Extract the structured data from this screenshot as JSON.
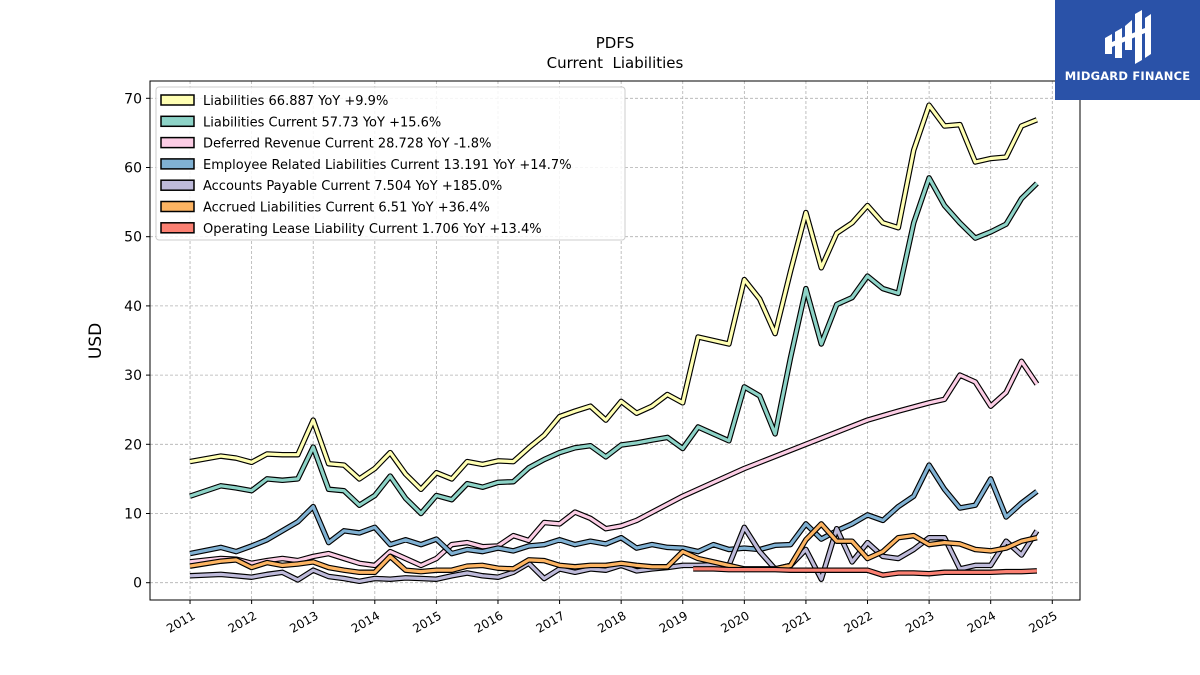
{
  "chart_data": {
    "type": "line",
    "title": "PDFS",
    "subtitle": "Current  Liabilities",
    "xlabel": "",
    "ylabel": "USD",
    "x_ticks": [
      "2011",
      "2012",
      "2013",
      "2014",
      "2015",
      "2016",
      "2017",
      "2018",
      "2019",
      "2020",
      "2021",
      "2022",
      "2023",
      "2024",
      "2025"
    ],
    "y_ticks": [
      0,
      10,
      20,
      30,
      40,
      50,
      60,
      70
    ],
    "xlim": [
      2010.35,
      2025.45
    ],
    "ylim": [
      -2.5,
      72.5
    ],
    "grid": true,
    "legend_position": "top-left",
    "series": [
      {
        "name": "Liabilities",
        "legend_label": "Liabilities  66.887 YoY +9.9%",
        "color": "#ffffb3",
        "x": [
          2011.0,
          2011.5,
          2011.75,
          2012.0,
          2012.25,
          2012.5,
          2012.75,
          2013.0,
          2013.25,
          2013.5,
          2013.75,
          2014.0,
          2014.25,
          2014.5,
          2014.75,
          2015.0,
          2015.25,
          2015.5,
          2015.75,
          2016.0,
          2016.25,
          2016.5,
          2016.75,
          2017.0,
          2017.25,
          2017.5,
          2017.75,
          2018.0,
          2018.25,
          2018.5,
          2018.75,
          2019.0,
          2019.25,
          2019.5,
          2019.75,
          2020.0,
          2020.25,
          2020.5,
          2020.75,
          2021.0,
          2021.25,
          2021.5,
          2021.75,
          2022.0,
          2022.25,
          2022.5,
          2022.75,
          2023.0,
          2023.25,
          2023.5,
          2023.75,
          2024.0,
          2024.25,
          2024.5,
          2024.75
        ],
        "y": [
          17.5,
          18.3,
          18.0,
          17.4,
          18.6,
          18.5,
          18.5,
          23.5,
          17.2,
          17.0,
          15.0,
          16.5,
          18.8,
          15.7,
          13.5,
          15.9,
          15.0,
          17.5,
          17.1,
          17.6,
          17.5,
          19.5,
          21.3,
          24.0,
          24.8,
          25.5,
          23.5,
          26.2,
          24.5,
          25.5,
          27.2,
          26.0,
          35.5,
          35.0,
          34.5,
          43.8,
          41.0,
          36.0,
          45.0,
          53.5,
          45.5,
          50.5,
          52.0,
          54.5,
          52.0,
          51.3,
          62.5,
          69.0,
          66.0,
          66.2,
          60.8,
          61.3,
          61.5,
          66.0,
          66.9
        ]
      },
      {
        "name": "Liabilities Current",
        "legend_label": "Liabilities Current  57.73 YoY +15.6%",
        "color": "#8dd3c7",
        "x": [
          2011.0,
          2011.5,
          2011.75,
          2012.0,
          2012.25,
          2012.5,
          2012.75,
          2013.0,
          2013.25,
          2013.5,
          2013.75,
          2014.0,
          2014.25,
          2014.5,
          2014.75,
          2015.0,
          2015.25,
          2015.5,
          2015.75,
          2016.0,
          2016.25,
          2016.5,
          2016.75,
          2017.0,
          2017.25,
          2017.5,
          2017.75,
          2018.0,
          2018.25,
          2018.5,
          2018.75,
          2019.0,
          2019.25,
          2019.5,
          2019.75,
          2020.0,
          2020.25,
          2020.5,
          2020.75,
          2021.0,
          2021.25,
          2021.5,
          2021.75,
          2022.0,
          2022.25,
          2022.5,
          2022.75,
          2023.0,
          2023.25,
          2023.5,
          2023.75,
          2024.0,
          2024.25,
          2024.5,
          2024.75
        ],
        "y": [
          12.5,
          14.0,
          13.7,
          13.3,
          15.0,
          14.8,
          15.0,
          19.6,
          13.5,
          13.3,
          11.2,
          12.6,
          15.4,
          12.2,
          10.0,
          12.6,
          12.0,
          14.3,
          13.8,
          14.5,
          14.6,
          16.6,
          17.8,
          18.8,
          19.5,
          19.8,
          18.2,
          19.9,
          20.2,
          20.6,
          21.0,
          19.4,
          22.5,
          21.5,
          20.5,
          28.3,
          27.0,
          21.5,
          32.5,
          42.5,
          34.5,
          40.2,
          41.2,
          44.3,
          42.5,
          41.8,
          52.0,
          58.5,
          54.5,
          52.0,
          49.8,
          50.7,
          51.8,
          55.5,
          57.7
        ]
      },
      {
        "name": "Deferred Revenue Current",
        "legend_label": "Deferred Revenue Current  28.728 YoY -1.8%",
        "color": "#fccde5",
        "x": [
          2011.0,
          2011.5,
          2011.75,
          2012.0,
          2012.25,
          2012.5,
          2012.75,
          2013.0,
          2013.25,
          2013.5,
          2013.75,
          2014.0,
          2014.25,
          2014.5,
          2014.75,
          2015.0,
          2015.25,
          2015.5,
          2015.75,
          2016.0,
          2016.25,
          2016.5,
          2016.75,
          2017.0,
          2017.25,
          2017.5,
          2017.75,
          2018.0,
          2018.25,
          2019.0,
          2020.0,
          2021.0,
          2022.0,
          2022.5,
          2023.0,
          2023.25,
          2023.5,
          2023.75,
          2024.0,
          2024.25,
          2024.5,
          2024.75
        ],
        "y": [
          3.0,
          3.5,
          3.4,
          2.8,
          3.2,
          3.5,
          3.2,
          3.8,
          4.2,
          3.5,
          2.8,
          2.5,
          4.5,
          3.5,
          2.5,
          3.5,
          5.5,
          5.8,
          5.2,
          5.3,
          6.8,
          6.1,
          8.7,
          8.5,
          10.2,
          9.3,
          7.8,
          8.2,
          9.0,
          12.5,
          16.5,
          20.0,
          23.5,
          24.8,
          26.0,
          26.5,
          30.0,
          29.0,
          25.5,
          27.5,
          32.0,
          28.7
        ]
      },
      {
        "name": "Employee Related Liabilities Current",
        "legend_label": "Employee Related Liabilities Current  13.191 YoY +14.7%",
        "color": "#80b1d3",
        "x": [
          2011.0,
          2011.5,
          2011.75,
          2012.0,
          2012.25,
          2012.5,
          2012.75,
          2013.0,
          2013.25,
          2013.5,
          2013.75,
          2014.0,
          2014.25,
          2014.5,
          2014.75,
          2015.0,
          2015.25,
          2015.5,
          2015.75,
          2016.0,
          2016.25,
          2016.5,
          2016.75,
          2017.0,
          2017.25,
          2017.5,
          2017.75,
          2018.0,
          2018.25,
          2018.5,
          2018.75,
          2019.0,
          2019.25,
          2019.5,
          2019.75,
          2020.0,
          2020.25,
          2020.5,
          2020.75,
          2021.0,
          2021.25,
          2021.5,
          2021.75,
          2022.0,
          2022.25,
          2022.5,
          2022.75,
          2023.0,
          2023.25,
          2023.5,
          2023.75,
          2024.0,
          2024.25,
          2024.5,
          2024.75
        ],
        "y": [
          4.2,
          5.1,
          4.5,
          5.3,
          6.2,
          7.5,
          8.8,
          11.0,
          5.8,
          7.5,
          7.2,
          8.0,
          5.5,
          6.2,
          5.5,
          6.3,
          4.2,
          4.8,
          4.5,
          5.0,
          4.6,
          5.3,
          5.5,
          6.2,
          5.5,
          6.0,
          5.6,
          6.5,
          5.0,
          5.5,
          5.1,
          5.0,
          4.5,
          5.5,
          4.8,
          5.0,
          4.8,
          5.4,
          5.5,
          8.5,
          6.3,
          7.5,
          8.5,
          9.8,
          9.0,
          11.0,
          12.5,
          17.0,
          13.5,
          10.8,
          11.2,
          15.0,
          9.5,
          11.5,
          13.2
        ]
      },
      {
        "name": "Accounts Payable Current",
        "legend_label": "Accounts Payable Current  7.504 YoY +185.0%",
        "color": "#bebada",
        "x": [
          2011.0,
          2011.5,
          2011.75,
          2012.0,
          2012.25,
          2012.5,
          2012.75,
          2013.0,
          2013.25,
          2013.5,
          2013.75,
          2014.0,
          2014.25,
          2014.5,
          2014.75,
          2015.0,
          2015.25,
          2015.5,
          2015.75,
          2016.0,
          2016.25,
          2016.5,
          2016.75,
          2017.0,
          2017.25,
          2017.5,
          2017.75,
          2018.0,
          2018.25,
          2018.5,
          2018.75,
          2019.0,
          2019.25,
          2019.5,
          2019.75,
          2020.0,
          2020.25,
          2020.5,
          2020.75,
          2021.0,
          2021.25,
          2021.5,
          2021.75,
          2022.0,
          2022.25,
          2022.5,
          2022.75,
          2023.0,
          2023.25,
          2023.5,
          2023.75,
          2024.0,
          2024.25,
          2024.5,
          2024.75
        ],
        "y": [
          1.0,
          1.2,
          1.0,
          0.8,
          1.2,
          1.5,
          0.4,
          1.8,
          0.9,
          0.6,
          0.2,
          0.6,
          0.5,
          0.7,
          0.6,
          0.5,
          1.0,
          1.4,
          1.0,
          0.8,
          1.5,
          2.8,
          0.6,
          2.0,
          1.5,
          2.0,
          1.8,
          2.5,
          1.7,
          2.0,
          2.2,
          2.5,
          2.5,
          2.6,
          2.5,
          8.0,
          4.5,
          2.0,
          2.5,
          4.8,
          0.5,
          7.8,
          3.0,
          5.8,
          3.8,
          3.5,
          4.8,
          6.5,
          6.5,
          2.0,
          2.5,
          2.5,
          6.0,
          4.0,
          7.5
        ]
      },
      {
        "name": "Accrued Liabilities Current",
        "legend_label": "Accrued Liabilities Current  6.51 YoY +36.4%",
        "color": "#fdb462",
        "x": [
          2011.0,
          2011.5,
          2011.75,
          2012.0,
          2012.25,
          2012.5,
          2012.75,
          2013.0,
          2013.25,
          2013.5,
          2013.75,
          2014.0,
          2014.25,
          2014.5,
          2014.75,
          2015.0,
          2015.25,
          2015.5,
          2015.75,
          2016.0,
          2016.25,
          2016.5,
          2016.75,
          2017.0,
          2017.25,
          2017.5,
          2017.75,
          2018.0,
          2018.25,
          2018.5,
          2018.75,
          2019.0,
          2019.25,
          2019.5,
          2019.75,
          2020.0,
          2020.25,
          2020.5,
          2020.75,
          2021.0,
          2021.25,
          2021.5,
          2021.75,
          2022.0,
          2022.25,
          2022.5,
          2022.75,
          2023.0,
          2023.25,
          2023.5,
          2023.75,
          2024.0,
          2024.25,
          2024.5,
          2024.75
        ],
        "y": [
          2.4,
          3.1,
          3.3,
          2.2,
          2.9,
          2.5,
          2.7,
          3.0,
          2.2,
          1.8,
          1.5,
          1.5,
          3.8,
          1.8,
          1.6,
          1.8,
          1.8,
          2.4,
          2.5,
          2.1,
          2.0,
          3.3,
          3.2,
          2.5,
          2.3,
          2.5,
          2.5,
          2.8,
          2.5,
          2.3,
          2.3,
          4.5,
          3.5,
          3.0,
          2.5,
          2.0,
          2.0,
          2.0,
          2.5,
          6.2,
          8.5,
          6.0,
          6.0,
          3.5,
          4.5,
          6.5,
          6.8,
          5.5,
          5.8,
          5.6,
          4.8,
          4.6,
          5.0,
          6.0,
          6.5
        ]
      },
      {
        "name": "Operating Lease Liability Current",
        "legend_label": "Operating Lease Liability Current  1.706 YoY +13.4%",
        "color": "#fb8072",
        "x": [
          2019.17,
          2019.5,
          2019.75,
          2020.0,
          2020.25,
          2020.5,
          2020.75,
          2021.0,
          2021.25,
          2021.5,
          2021.75,
          2022.0,
          2022.25,
          2022.5,
          2022.75,
          2023.0,
          2023.25,
          2023.5,
          2023.75,
          2024.0,
          2024.25,
          2024.5,
          2024.75
        ],
        "y": [
          2.0,
          2.0,
          1.9,
          1.9,
          1.9,
          1.9,
          1.8,
          1.8,
          1.8,
          1.8,
          1.8,
          1.8,
          1.1,
          1.4,
          1.4,
          1.3,
          1.5,
          1.5,
          1.5,
          1.5,
          1.6,
          1.6,
          1.7
        ]
      }
    ]
  },
  "logo": {
    "text": "MIDGARD FINANCE",
    "bg_color": "#2a52a8",
    "icon": "midgard-logo-icon"
  }
}
